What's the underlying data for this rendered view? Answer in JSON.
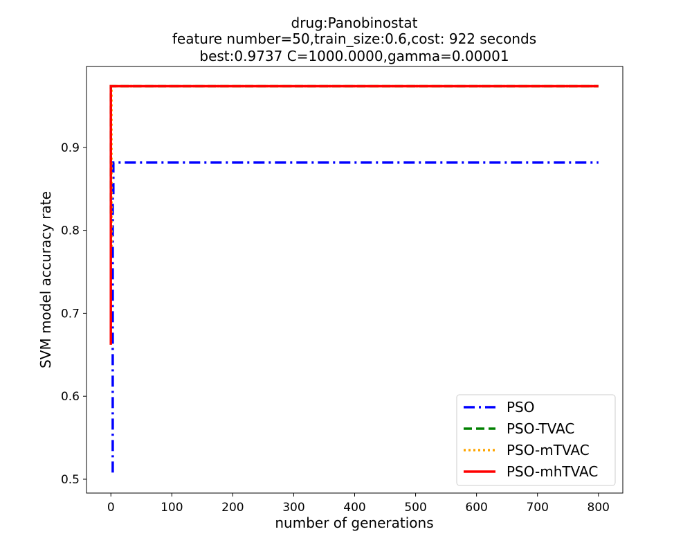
{
  "chart_data": {
    "type": "line",
    "title_lines": [
      "drug:Panobinostat",
      "feature number=50,train_size:0.6,cost: 922 seconds",
      "best:0.9737  C=1000.0000,gamma=0.00001"
    ],
    "xlabel": "number of generations",
    "ylabel": "SVM model accuracy rate",
    "xlim": [
      -40,
      840
    ],
    "ylim": [
      0.4833,
      0.9975
    ],
    "xticks": [
      0,
      100,
      200,
      300,
      400,
      500,
      600,
      700,
      800
    ],
    "yticks": [
      0.5,
      0.6,
      0.7,
      0.8,
      0.9
    ],
    "ytick_labels": [
      "0.5",
      "0.6",
      "0.7",
      "0.8",
      "0.9"
    ],
    "grid": false,
    "legend_position": "bottom-right",
    "series": [
      {
        "name": "PSO",
        "color": "#0000ff",
        "style": "dashdot",
        "x": [
          3,
          3,
          4,
          4,
          800
        ],
        "y": [
          0.508,
          0.84,
          0.84,
          0.8816,
          0.8816
        ]
      },
      {
        "name": "PSO-TVAC",
        "color": "#008000",
        "style": "dashed",
        "x": [
          0,
          0,
          2,
          800
        ],
        "y": [
          0.82,
          0.9737,
          0.9737,
          0.9737
        ]
      },
      {
        "name": "PSO-mTVAC",
        "color": "#ffa500",
        "style": "dotted",
        "x": [
          1,
          1,
          2,
          800
        ],
        "y": [
          0.78,
          0.9737,
          0.9737,
          0.9737
        ]
      },
      {
        "name": "PSO-mhTVAC",
        "color": "#ff0000",
        "style": "solid",
        "x": [
          0,
          0,
          2,
          2,
          800
        ],
        "y": [
          0.662,
          0.9737,
          0.9737,
          0.9737,
          0.9737
        ]
      }
    ]
  }
}
